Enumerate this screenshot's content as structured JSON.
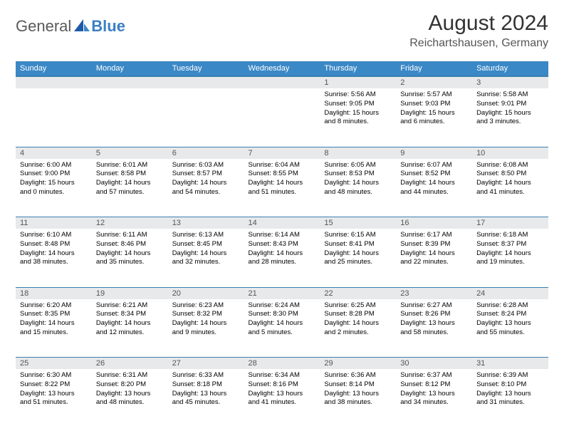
{
  "brand": {
    "part1": "General",
    "part2": "Blue"
  },
  "title": "August 2024",
  "location": "Reichartshausen, Germany",
  "colors": {
    "header_bg": "#3b88c6",
    "header_text": "#ffffff",
    "row_border": "#3b7fb0",
    "daynum_bg": "#e8e9ea",
    "logo_gray": "#5a5a5a",
    "logo_blue": "#3b7fc4"
  },
  "typography": {
    "month_title_pt": 30,
    "location_pt": 16,
    "day_header_pt": 11,
    "daynum_pt": 11,
    "body_pt": 9.5
  },
  "day_headers": [
    "Sunday",
    "Monday",
    "Tuesday",
    "Wednesday",
    "Thursday",
    "Friday",
    "Saturday"
  ],
  "weeks": [
    {
      "daynums": [
        "",
        "",
        "",
        "",
        "1",
        "2",
        "3"
      ],
      "cells": [
        null,
        null,
        null,
        null,
        {
          "sunrise": "Sunrise: 5:56 AM",
          "sunset": "Sunset: 9:05 PM",
          "daylight": "Daylight: 15 hours and 8 minutes."
        },
        {
          "sunrise": "Sunrise: 5:57 AM",
          "sunset": "Sunset: 9:03 PM",
          "daylight": "Daylight: 15 hours and 6 minutes."
        },
        {
          "sunrise": "Sunrise: 5:58 AM",
          "sunset": "Sunset: 9:01 PM",
          "daylight": "Daylight: 15 hours and 3 minutes."
        }
      ]
    },
    {
      "daynums": [
        "4",
        "5",
        "6",
        "7",
        "8",
        "9",
        "10"
      ],
      "cells": [
        {
          "sunrise": "Sunrise: 6:00 AM",
          "sunset": "Sunset: 9:00 PM",
          "daylight": "Daylight: 15 hours and 0 minutes."
        },
        {
          "sunrise": "Sunrise: 6:01 AM",
          "sunset": "Sunset: 8:58 PM",
          "daylight": "Daylight: 14 hours and 57 minutes."
        },
        {
          "sunrise": "Sunrise: 6:03 AM",
          "sunset": "Sunset: 8:57 PM",
          "daylight": "Daylight: 14 hours and 54 minutes."
        },
        {
          "sunrise": "Sunrise: 6:04 AM",
          "sunset": "Sunset: 8:55 PM",
          "daylight": "Daylight: 14 hours and 51 minutes."
        },
        {
          "sunrise": "Sunrise: 6:05 AM",
          "sunset": "Sunset: 8:53 PM",
          "daylight": "Daylight: 14 hours and 48 minutes."
        },
        {
          "sunrise": "Sunrise: 6:07 AM",
          "sunset": "Sunset: 8:52 PM",
          "daylight": "Daylight: 14 hours and 44 minutes."
        },
        {
          "sunrise": "Sunrise: 6:08 AM",
          "sunset": "Sunset: 8:50 PM",
          "daylight": "Daylight: 14 hours and 41 minutes."
        }
      ]
    },
    {
      "daynums": [
        "11",
        "12",
        "13",
        "14",
        "15",
        "16",
        "17"
      ],
      "cells": [
        {
          "sunrise": "Sunrise: 6:10 AM",
          "sunset": "Sunset: 8:48 PM",
          "daylight": "Daylight: 14 hours and 38 minutes."
        },
        {
          "sunrise": "Sunrise: 6:11 AM",
          "sunset": "Sunset: 8:46 PM",
          "daylight": "Daylight: 14 hours and 35 minutes."
        },
        {
          "sunrise": "Sunrise: 6:13 AM",
          "sunset": "Sunset: 8:45 PM",
          "daylight": "Daylight: 14 hours and 32 minutes."
        },
        {
          "sunrise": "Sunrise: 6:14 AM",
          "sunset": "Sunset: 8:43 PM",
          "daylight": "Daylight: 14 hours and 28 minutes."
        },
        {
          "sunrise": "Sunrise: 6:15 AM",
          "sunset": "Sunset: 8:41 PM",
          "daylight": "Daylight: 14 hours and 25 minutes."
        },
        {
          "sunrise": "Sunrise: 6:17 AM",
          "sunset": "Sunset: 8:39 PM",
          "daylight": "Daylight: 14 hours and 22 minutes."
        },
        {
          "sunrise": "Sunrise: 6:18 AM",
          "sunset": "Sunset: 8:37 PM",
          "daylight": "Daylight: 14 hours and 19 minutes."
        }
      ]
    },
    {
      "daynums": [
        "18",
        "19",
        "20",
        "21",
        "22",
        "23",
        "24"
      ],
      "cells": [
        {
          "sunrise": "Sunrise: 6:20 AM",
          "sunset": "Sunset: 8:35 PM",
          "daylight": "Daylight: 14 hours and 15 minutes."
        },
        {
          "sunrise": "Sunrise: 6:21 AM",
          "sunset": "Sunset: 8:34 PM",
          "daylight": "Daylight: 14 hours and 12 minutes."
        },
        {
          "sunrise": "Sunrise: 6:23 AM",
          "sunset": "Sunset: 8:32 PM",
          "daylight": "Daylight: 14 hours and 9 minutes."
        },
        {
          "sunrise": "Sunrise: 6:24 AM",
          "sunset": "Sunset: 8:30 PM",
          "daylight": "Daylight: 14 hours and 5 minutes."
        },
        {
          "sunrise": "Sunrise: 6:25 AM",
          "sunset": "Sunset: 8:28 PM",
          "daylight": "Daylight: 14 hours and 2 minutes."
        },
        {
          "sunrise": "Sunrise: 6:27 AM",
          "sunset": "Sunset: 8:26 PM",
          "daylight": "Daylight: 13 hours and 58 minutes."
        },
        {
          "sunrise": "Sunrise: 6:28 AM",
          "sunset": "Sunset: 8:24 PM",
          "daylight": "Daylight: 13 hours and 55 minutes."
        }
      ]
    },
    {
      "daynums": [
        "25",
        "26",
        "27",
        "28",
        "29",
        "30",
        "31"
      ],
      "cells": [
        {
          "sunrise": "Sunrise: 6:30 AM",
          "sunset": "Sunset: 8:22 PM",
          "daylight": "Daylight: 13 hours and 51 minutes."
        },
        {
          "sunrise": "Sunrise: 6:31 AM",
          "sunset": "Sunset: 8:20 PM",
          "daylight": "Daylight: 13 hours and 48 minutes."
        },
        {
          "sunrise": "Sunrise: 6:33 AM",
          "sunset": "Sunset: 8:18 PM",
          "daylight": "Daylight: 13 hours and 45 minutes."
        },
        {
          "sunrise": "Sunrise: 6:34 AM",
          "sunset": "Sunset: 8:16 PM",
          "daylight": "Daylight: 13 hours and 41 minutes."
        },
        {
          "sunrise": "Sunrise: 6:36 AM",
          "sunset": "Sunset: 8:14 PM",
          "daylight": "Daylight: 13 hours and 38 minutes."
        },
        {
          "sunrise": "Sunrise: 6:37 AM",
          "sunset": "Sunset: 8:12 PM",
          "daylight": "Daylight: 13 hours and 34 minutes."
        },
        {
          "sunrise": "Sunrise: 6:39 AM",
          "sunset": "Sunset: 8:10 PM",
          "daylight": "Daylight: 13 hours and 31 minutes."
        }
      ]
    }
  ]
}
